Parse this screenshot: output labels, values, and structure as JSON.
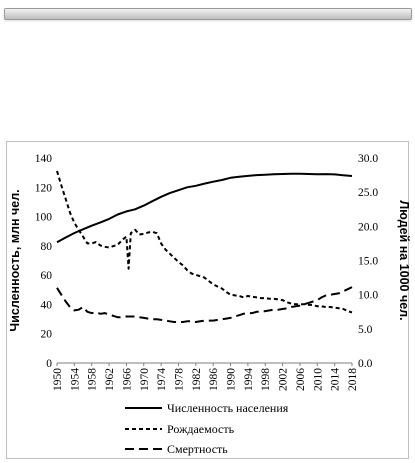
{
  "chart_data": {
    "type": "line",
    "title": "",
    "y_left": {
      "label": "Численность, млн чел.",
      "min": 0,
      "max": 140,
      "step": 20,
      "ticks": [
        "0",
        "20",
        "40",
        "60",
        "80",
        "100",
        "120",
        "140"
      ]
    },
    "y_right": {
      "label": "Людей на 1000 чел.",
      "min": 0,
      "max": 30,
      "step": 5,
      "ticks": [
        "0.0",
        "5.0",
        "10.0",
        "15.0",
        "20.0",
        "25.0",
        "30.0"
      ]
    },
    "x_ticks": [
      "1950",
      "1954",
      "1958",
      "1962",
      "1966",
      "1970",
      "1974",
      "1978",
      "1982",
      "1986",
      "1990",
      "1994",
      "1998",
      "2002",
      "2006",
      "2010",
      "2014",
      "2018"
    ],
    "x_range": [
      1950,
      2018
    ],
    "grid": "none",
    "legend_position": "bottom",
    "series": [
      {
        "name": "Численность населения",
        "axis": "left",
        "style": "solid",
        "x": [
          1950,
          1952,
          1954,
          1956,
          1958,
          1960,
          1962,
          1964,
          1966,
          1968,
          1970,
          1972,
          1974,
          1976,
          1978,
          1980,
          1982,
          1984,
          1986,
          1988,
          1990,
          1992,
          1994,
          1996,
          1998,
          2000,
          2002,
          2004,
          2006,
          2008,
          2010,
          2012,
          2014,
          2016,
          2018
        ],
        "values": [
          82.5,
          85.7,
          88.8,
          91.3,
          93.8,
          96.0,
          98.4,
          101.4,
          103.5,
          105.0,
          107.5,
          110.5,
          113.5,
          116.0,
          118.0,
          120.0,
          121.0,
          122.5,
          123.8,
          125.0,
          126.5,
          127.2,
          127.8,
          128.3,
          128.6,
          128.9,
          129.1,
          129.2,
          129.2,
          129.1,
          128.9,
          129.0,
          128.8,
          128.2,
          127.7
        ]
      },
      {
        "name": "Рождаемость",
        "axis": "right",
        "style": "dashed",
        "x": [
          1950,
          1951,
          1952,
          1953,
          1954,
          1955,
          1956,
          1957,
          1958,
          1959,
          1960,
          1961,
          1962,
          1963,
          1964,
          1965,
          1966,
          1966.5,
          1967,
          1968,
          1969,
          1970,
          1971,
          1972,
          1973,
          1974,
          1975,
          1976,
          1977,
          1978,
          1979,
          1980,
          1981,
          1982,
          1983,
          1984,
          1985,
          1986,
          1987,
          1988,
          1989,
          1990,
          1991,
          1992,
          1993,
          1994,
          1995,
          1996,
          1997,
          1998,
          1999,
          2000,
          2001,
          2002,
          2003,
          2004,
          2005,
          2006,
          2007,
          2008,
          2009,
          2010,
          2011,
          2012,
          2013,
          2014,
          2015,
          2016,
          2017,
          2018
        ],
        "values": [
          28.1,
          26.0,
          24.0,
          22.0,
          20.5,
          19.5,
          18.5,
          17.5,
          17.5,
          17.7,
          17.2,
          17.0,
          16.9,
          17.1,
          17.3,
          18.0,
          18.5,
          13.8,
          19.0,
          19.5,
          18.8,
          18.9,
          19.1,
          19.2,
          19.0,
          17.5,
          16.6,
          16.0,
          15.4,
          14.8,
          14.3,
          13.6,
          13.1,
          12.9,
          12.7,
          12.5,
          12.0,
          11.5,
          11.2,
          10.9,
          10.4,
          10.0,
          9.9,
          9.8,
          9.6,
          9.8,
          9.7,
          9.6,
          9.5,
          9.5,
          9.4,
          9.4,
          9.3,
          9.2,
          8.9,
          8.7,
          8.6,
          8.6,
          8.6,
          8.5,
          8.5,
          8.3,
          8.3,
          8.2,
          8.2,
          8.1,
          8.0,
          7.9,
          7.6,
          7.4
        ]
      },
      {
        "name": "Смертность",
        "axis": "right",
        "style": "long-dash",
        "x": [
          1950,
          1951,
          1952,
          1953,
          1954,
          1955,
          1956,
          1957,
          1958,
          1959,
          1960,
          1961,
          1962,
          1963,
          1964,
          1965,
          1966,
          1967,
          1968,
          1969,
          1970,
          1971,
          1972,
          1973,
          1974,
          1975,
          1976,
          1977,
          1978,
          1979,
          1980,
          1981,
          1982,
          1983,
          1984,
          1985,
          1986,
          1987,
          1988,
          1989,
          1990,
          1991,
          1992,
          1993,
          1994,
          1995,
          1996,
          1997,
          1998,
          1999,
          2000,
          2001,
          2002,
          2003,
          2004,
          2005,
          2006,
          2007,
          2008,
          2009,
          2010,
          2011,
          2012,
          2013,
          2014,
          2015,
          2016,
          2017,
          2018
        ],
        "values": [
          11.0,
          10.0,
          9.0,
          8.2,
          7.7,
          7.8,
          8.2,
          7.5,
          7.3,
          7.4,
          7.2,
          7.3,
          7.1,
          6.9,
          6.7,
          6.7,
          6.8,
          6.8,
          6.8,
          6.7,
          6.6,
          6.5,
          6.4,
          6.4,
          6.3,
          6.2,
          6.1,
          6.0,
          6.0,
          6.0,
          6.1,
          6.1,
          6.0,
          6.1,
          6.2,
          6.2,
          6.2,
          6.3,
          6.4,
          6.5,
          6.6,
          6.8,
          7.0,
          7.2,
          7.3,
          7.3,
          7.5,
          7.5,
          7.6,
          7.7,
          7.8,
          7.8,
          7.9,
          8.0,
          8.2,
          8.3,
          8.4,
          8.6,
          8.8,
          9.0,
          9.2,
          9.6,
          9.9,
          10.0,
          10.1,
          10.2,
          10.5,
          10.8,
          11.1
        ]
      }
    ]
  }
}
